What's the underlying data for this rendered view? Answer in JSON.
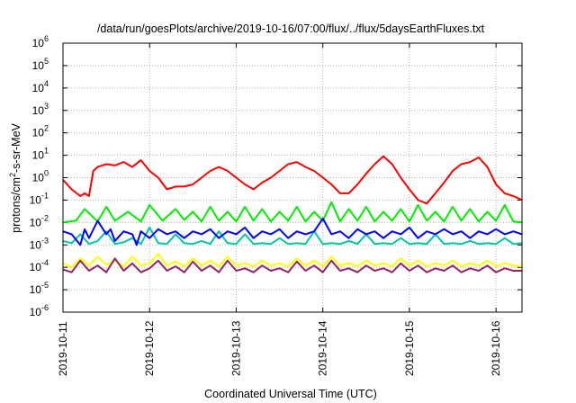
{
  "chart_data": {
    "type": "line",
    "title": "/data/run/goesPlots/archive/2019-10-16/07:00/flux/../flux/5daysEarthFluxes.txt",
    "xlabel": "Coordinated Universal Time (UTC)",
    "ylabel": {
      "base": "protons/cm",
      "sup": "2",
      "rest": "-s-sr-MeV"
    },
    "yscale": "log",
    "ylim": [
      1e-06,
      1000000.0
    ],
    "y_ticks": [
      {
        "exp": "-6"
      },
      {
        "exp": "-5"
      },
      {
        "exp": "-4"
      },
      {
        "exp": "-3"
      },
      {
        "exp": "-2"
      },
      {
        "exp": "-1"
      },
      {
        "exp": "0"
      },
      {
        "exp": "1"
      },
      {
        "exp": "2"
      },
      {
        "exp": "3"
      },
      {
        "exp": "4"
      },
      {
        "exp": "5"
      },
      {
        "exp": "6"
      }
    ],
    "x_ticks": [
      "2019-10-11",
      "2019-10-12",
      "2019-10-13",
      "2019-10-14",
      "2019-10-15",
      "2019-10-16"
    ],
    "xlim_days": [
      0,
      5.3
    ],
    "grid": true,
    "series": [
      {
        "color": "#ff0000",
        "x": [
          0,
          0.1,
          0.2,
          0.25,
          0.3,
          0.35,
          0.4,
          0.5,
          0.6,
          0.7,
          0.8,
          0.9,
          1.0,
          1.1,
          1.2,
          1.3,
          1.4,
          1.5,
          1.6,
          1.7,
          1.8,
          1.9,
          2.0,
          2.1,
          2.2,
          2.3,
          2.4,
          2.5,
          2.6,
          2.7,
          2.8,
          2.9,
          3.0,
          3.1,
          3.2,
          3.3,
          3.4,
          3.5,
          3.6,
          3.7,
          3.8,
          3.9,
          4.0,
          4.1,
          4.2,
          4.3,
          4.4,
          4.5,
          4.6,
          4.7,
          4.8,
          4.9,
          5.0,
          5.1,
          5.2,
          5.3
        ],
        "y": [
          0.8,
          0.3,
          0.15,
          0.2,
          0.15,
          2.0,
          3.0,
          4.0,
          3.5,
          5.0,
          3.0,
          6.0,
          2.0,
          1.0,
          0.3,
          0.4,
          0.4,
          0.5,
          1.0,
          2.0,
          3.0,
          2.0,
          1.0,
          0.5,
          0.3,
          0.6,
          1.0,
          2.0,
          4.0,
          5.0,
          3.0,
          2.0,
          1.0,
          0.5,
          0.2,
          0.2,
          0.5,
          1.5,
          4.0,
          9.0,
          4.0,
          1.0,
          0.3,
          0.1,
          0.07,
          0.2,
          0.6,
          2.0,
          4.0,
          5.0,
          8.0,
          3.0,
          0.5,
          0.2,
          0.15,
          0.1
        ]
      },
      {
        "color": "#00ee00",
        "x": [
          0,
          0.15,
          0.25,
          0.4,
          0.5,
          0.6,
          0.75,
          0.9,
          1.0,
          1.15,
          1.3,
          1.4,
          1.5,
          1.6,
          1.7,
          1.8,
          1.9,
          2.0,
          2.1,
          2.2,
          2.3,
          2.4,
          2.5,
          2.6,
          2.7,
          2.8,
          2.9,
          3.0,
          3.1,
          3.2,
          3.3,
          3.4,
          3.5,
          3.6,
          3.7,
          3.8,
          3.9,
          4.0,
          4.1,
          4.2,
          4.3,
          4.4,
          4.5,
          4.6,
          4.7,
          4.8,
          4.9,
          5.0,
          5.1,
          5.2,
          5.3
        ],
        "y": [
          0.01,
          0.012,
          0.04,
          0.011,
          0.05,
          0.012,
          0.03,
          0.011,
          0.06,
          0.012,
          0.04,
          0.013,
          0.03,
          0.011,
          0.05,
          0.012,
          0.03,
          0.011,
          0.05,
          0.012,
          0.04,
          0.011,
          0.03,
          0.012,
          0.05,
          0.011,
          0.03,
          0.012,
          0.08,
          0.011,
          0.04,
          0.012,
          0.05,
          0.011,
          0.03,
          0.012,
          0.04,
          0.011,
          0.06,
          0.012,
          0.03,
          0.011,
          0.05,
          0.012,
          0.04,
          0.011,
          0.03,
          0.012,
          0.06,
          0.011,
          0.01
        ]
      },
      {
        "color": "#00c8a0",
        "x": [
          0,
          0.1,
          0.2,
          0.3,
          0.4,
          0.5,
          0.6,
          0.7,
          0.8,
          0.9,
          1.0,
          1.1,
          1.2,
          1.3,
          1.4,
          1.5,
          1.6,
          1.7,
          1.8,
          1.9,
          2.0,
          2.1,
          2.2,
          2.3,
          2.4,
          2.5,
          2.6,
          2.7,
          2.8,
          2.9,
          3.0,
          3.1,
          3.2,
          3.3,
          3.4,
          3.5,
          3.6,
          3.7,
          3.8,
          3.9,
          4.0,
          4.1,
          4.2,
          4.3,
          4.4,
          4.5,
          4.6,
          4.7,
          4.8,
          4.9,
          5.0,
          5.1,
          5.2,
          5.3
        ],
        "y": [
          0.0015,
          0.0012,
          0.003,
          0.0011,
          0.0015,
          0.004,
          0.0011,
          0.0013,
          0.002,
          0.0011,
          0.006,
          0.0012,
          0.0011,
          0.003,
          0.0012,
          0.0011,
          0.0015,
          0.0011,
          0.004,
          0.0012,
          0.0011,
          0.003,
          0.0011,
          0.0012,
          0.0011,
          0.002,
          0.0011,
          0.0012,
          0.0011,
          0.004,
          0.0011,
          0.0012,
          0.0011,
          0.0015,
          0.0011,
          0.003,
          0.0011,
          0.0012,
          0.0011,
          0.002,
          0.0011,
          0.0012,
          0.0011,
          0.003,
          0.0011,
          0.0012,
          0.0011,
          0.0015,
          0.0011,
          0.0012,
          0.0011,
          0.002,
          0.0011,
          0.0012
        ]
      },
      {
        "color": "#0000ff",
        "x": [
          0,
          0.1,
          0.2,
          0.25,
          0.3,
          0.4,
          0.5,
          0.55,
          0.6,
          0.7,
          0.8,
          0.85,
          0.9,
          1.0,
          1.1,
          1.2,
          1.3,
          1.4,
          1.5,
          1.6,
          1.7,
          1.8,
          1.9,
          2.0,
          2.1,
          2.2,
          2.3,
          2.4,
          2.5,
          2.6,
          2.7,
          2.8,
          2.9,
          3.0,
          3.1,
          3.2,
          3.3,
          3.4,
          3.5,
          3.6,
          3.7,
          3.8,
          3.9,
          4.0,
          4.1,
          4.2,
          4.3,
          4.4,
          4.5,
          4.6,
          4.7,
          4.8,
          4.9,
          5.0,
          5.1,
          5.2,
          5.3
        ],
        "y": [
          0.004,
          0.003,
          0.001,
          0.005,
          0.002,
          0.012,
          0.003,
          0.005,
          0.0015,
          0.004,
          0.003,
          0.001,
          0.004,
          0.002,
          0.005,
          0.003,
          0.004,
          0.002,
          0.004,
          0.003,
          0.005,
          0.002,
          0.004,
          0.003,
          0.006,
          0.002,
          0.004,
          0.003,
          0.005,
          0.002,
          0.004,
          0.003,
          0.004,
          0.015,
          0.003,
          0.004,
          0.002,
          0.005,
          0.003,
          0.004,
          0.002,
          0.004,
          0.003,
          0.006,
          0.002,
          0.004,
          0.003,
          0.005,
          0.003,
          0.004,
          0.002,
          0.004,
          0.003,
          0.005,
          0.003,
          0.004,
          0.003
        ]
      },
      {
        "color": "#ffff00",
        "x": [
          0,
          0.1,
          0.2,
          0.3,
          0.4,
          0.5,
          0.6,
          0.7,
          0.8,
          0.9,
          1.0,
          1.1,
          1.2,
          1.3,
          1.4,
          1.5,
          1.6,
          1.7,
          1.8,
          1.9,
          2.0,
          2.1,
          2.2,
          2.3,
          2.4,
          2.5,
          2.6,
          2.7,
          2.8,
          2.9,
          3.0,
          3.1,
          3.2,
          3.3,
          3.4,
          3.5,
          3.6,
          3.7,
          3.8,
          3.9,
          4.0,
          4.1,
          4.2,
          4.3,
          4.4,
          4.5,
          4.6,
          4.7,
          4.8,
          4.9,
          5.0,
          5.1,
          5.2,
          5.3
        ],
        "y": [
          0.00015,
          0.0001,
          0.00025,
          0.00012,
          0.0003,
          0.00013,
          0.0002,
          0.00011,
          0.0003,
          0.00012,
          0.00015,
          0.0004,
          0.00012,
          0.00018,
          0.00011,
          0.00025,
          0.00012,
          0.0002,
          0.00011,
          0.0003,
          0.00012,
          0.00015,
          0.00011,
          0.0002,
          0.00012,
          0.00015,
          0.00011,
          0.00025,
          0.00012,
          0.0002,
          0.00011,
          0.0003,
          0.00012,
          0.00015,
          0.00011,
          0.0002,
          0.00012,
          0.00015,
          0.00011,
          0.00025,
          0.00012,
          0.0002,
          0.00011,
          0.00015,
          0.00012,
          0.0002,
          0.00011,
          0.00015,
          0.00012,
          0.0002,
          0.00011,
          0.00015,
          0.00012,
          0.00011
        ]
      },
      {
        "color": "#992266",
        "x": [
          0,
          0.1,
          0.2,
          0.3,
          0.4,
          0.5,
          0.6,
          0.7,
          0.8,
          0.9,
          1.0,
          1.1,
          1.2,
          1.3,
          1.4,
          1.5,
          1.6,
          1.7,
          1.8,
          1.9,
          2.0,
          2.1,
          2.2,
          2.3,
          2.4,
          2.5,
          2.6,
          2.7,
          2.8,
          2.9,
          3.0,
          3.1,
          3.2,
          3.3,
          3.4,
          3.5,
          3.6,
          3.7,
          3.8,
          3.9,
          4.0,
          4.1,
          4.2,
          4.3,
          4.4,
          4.5,
          4.6,
          4.7,
          4.8,
          4.9,
          5.0,
          5.1,
          5.2,
          5.3
        ],
        "y": [
          8e-05,
          6e-05,
          0.0002,
          7e-05,
          0.00012,
          6e-05,
          0.00025,
          7e-05,
          0.00015,
          6e-05,
          9e-05,
          0.0002,
          7e-05,
          0.00011,
          6e-05,
          0.00018,
          7e-05,
          0.00012,
          6e-05,
          0.0002,
          7e-05,
          9e-05,
          6e-05,
          0.00012,
          7e-05,
          9e-05,
          6e-05,
          0.00018,
          7e-05,
          0.00012,
          6e-05,
          0.0002,
          7e-05,
          9e-05,
          6e-05,
          0.00012,
          7e-05,
          9e-05,
          6e-05,
          0.00015,
          7e-05,
          0.00012,
          6e-05,
          9e-05,
          7e-05,
          0.00012,
          6e-05,
          9e-05,
          7e-05,
          0.00012,
          6e-05,
          9e-05,
          7e-05,
          7e-05
        ]
      }
    ]
  }
}
